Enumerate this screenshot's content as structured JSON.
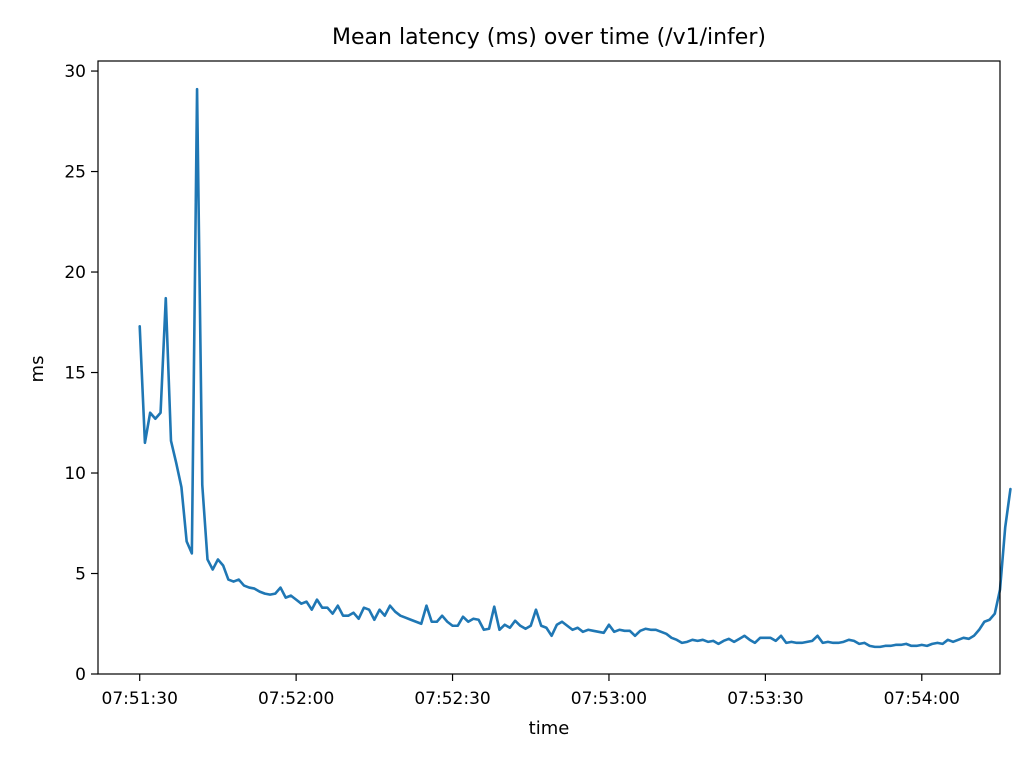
{
  "chart_data": {
    "type": "line",
    "title": "Mean latency (ms) over time (/v1/infer)",
    "xlabel": "time",
    "ylabel": "ms",
    "grid": false,
    "legend": "none",
    "x_start": "07:51:30",
    "x_step_seconds": 1,
    "xlim": [
      "07:51:22",
      "07:54:15"
    ],
    "ylim": [
      0,
      30.5
    ],
    "xticks": [
      "07:51:30",
      "07:52:00",
      "07:52:30",
      "07:53:00",
      "07:53:30",
      "07:54:00"
    ],
    "yticks": [
      0,
      5,
      10,
      15,
      20,
      25,
      30
    ],
    "series": [
      {
        "color": "#1f77b4",
        "values": [
          17.3,
          11.5,
          13.0,
          12.7,
          13.0,
          18.7,
          11.6,
          10.5,
          9.3,
          6.6,
          6.0,
          29.1,
          9.4,
          5.7,
          5.2,
          5.7,
          5.4,
          4.7,
          4.6,
          4.7,
          4.4,
          4.3,
          4.25,
          4.1,
          4.0,
          3.95,
          4.0,
          4.3,
          3.8,
          3.9,
          3.7,
          3.5,
          3.6,
          3.2,
          3.7,
          3.3,
          3.3,
          3.0,
          3.4,
          2.9,
          2.9,
          3.05,
          2.75,
          3.3,
          3.2,
          2.7,
          3.2,
          2.9,
          3.4,
          3.1,
          2.9,
          2.8,
          2.7,
          2.6,
          2.5,
          3.4,
          2.6,
          2.6,
          2.9,
          2.6,
          2.4,
          2.4,
          2.85,
          2.6,
          2.75,
          2.7,
          2.2,
          2.25,
          3.35,
          2.2,
          2.45,
          2.3,
          2.65,
          2.4,
          2.25,
          2.4,
          3.2,
          2.4,
          2.3,
          1.9,
          2.45,
          2.6,
          2.4,
          2.2,
          2.3,
          2.1,
          2.2,
          2.15,
          2.1,
          2.05,
          2.45,
          2.1,
          2.2,
          2.15,
          2.15,
          1.9,
          2.15,
          2.25,
          2.2,
          2.2,
          2.1,
          2.0,
          1.8,
          1.7,
          1.55,
          1.6,
          1.7,
          1.65,
          1.7,
          1.6,
          1.65,
          1.5,
          1.65,
          1.75,
          1.6,
          1.75,
          1.9,
          1.7,
          1.55,
          1.8,
          1.8,
          1.8,
          1.65,
          1.9,
          1.55,
          1.6,
          1.55,
          1.55,
          1.6,
          1.65,
          1.9,
          1.55,
          1.6,
          1.55,
          1.55,
          1.6,
          1.7,
          1.65,
          1.5,
          1.55,
          1.4,
          1.35,
          1.35,
          1.4,
          1.4,
          1.45,
          1.45,
          1.5,
          1.4,
          1.4,
          1.45,
          1.4,
          1.5,
          1.55,
          1.5,
          1.7,
          1.6,
          1.7,
          1.8,
          1.75,
          1.9,
          2.2,
          2.6,
          2.7,
          3.0,
          4.2,
          7.3,
          9.2
        ]
      }
    ]
  }
}
